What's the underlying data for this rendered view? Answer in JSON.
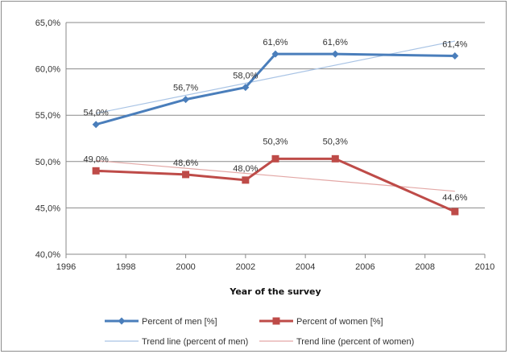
{
  "chart_data": {
    "type": "line",
    "xlabel": "Year of the survey",
    "ylabel": "",
    "xlim": [
      1996,
      2010
    ],
    "ylim": [
      40,
      65
    ],
    "x_ticks": [
      "1996",
      "1998",
      "2000",
      "2002",
      "2004",
      "2006",
      "2008",
      "2010"
    ],
    "y_ticks": [
      "40,0%",
      "45,0%",
      "50,0%",
      "55,0%",
      "60,0%",
      "65,0%"
    ],
    "grid": "horizontal",
    "legend_position": "bottom",
    "series": [
      {
        "name": "Percent of men [%]",
        "color": "#4a7ebb",
        "marker": "diamond",
        "x": [
          1997,
          2000,
          2002,
          2003,
          2005,
          2009
        ],
        "values": [
          54.0,
          56.7,
          58.0,
          61.6,
          61.6,
          61.4
        ],
        "labels": [
          "54,0%",
          "56,7%",
          "58,0%",
          "61,6%",
          "61,6%",
          "61,4%"
        ]
      },
      {
        "name": "Percent of women [%]",
        "color": "#be4b48",
        "marker": "square",
        "x": [
          1997,
          2000,
          2002,
          2003,
          2005,
          2009
        ],
        "values": [
          49.0,
          48.6,
          48.0,
          50.3,
          50.3,
          44.6
        ],
        "labels": [
          "49,0%",
          "48,6%",
          "48,0%",
          "50,3%",
          "50,3%",
          "44,6%"
        ]
      }
    ],
    "trendlines": [
      {
        "name": "Trend line (percent of men)",
        "color": "#a9c4e5",
        "x": [
          1997,
          2009
        ],
        "values": [
          55.2,
          63.0
        ]
      },
      {
        "name": "Trend line (percent of women)",
        "color": "#e3a8a6",
        "x": [
          1997,
          2009
        ],
        "values": [
          50.1,
          46.8
        ]
      }
    ]
  }
}
